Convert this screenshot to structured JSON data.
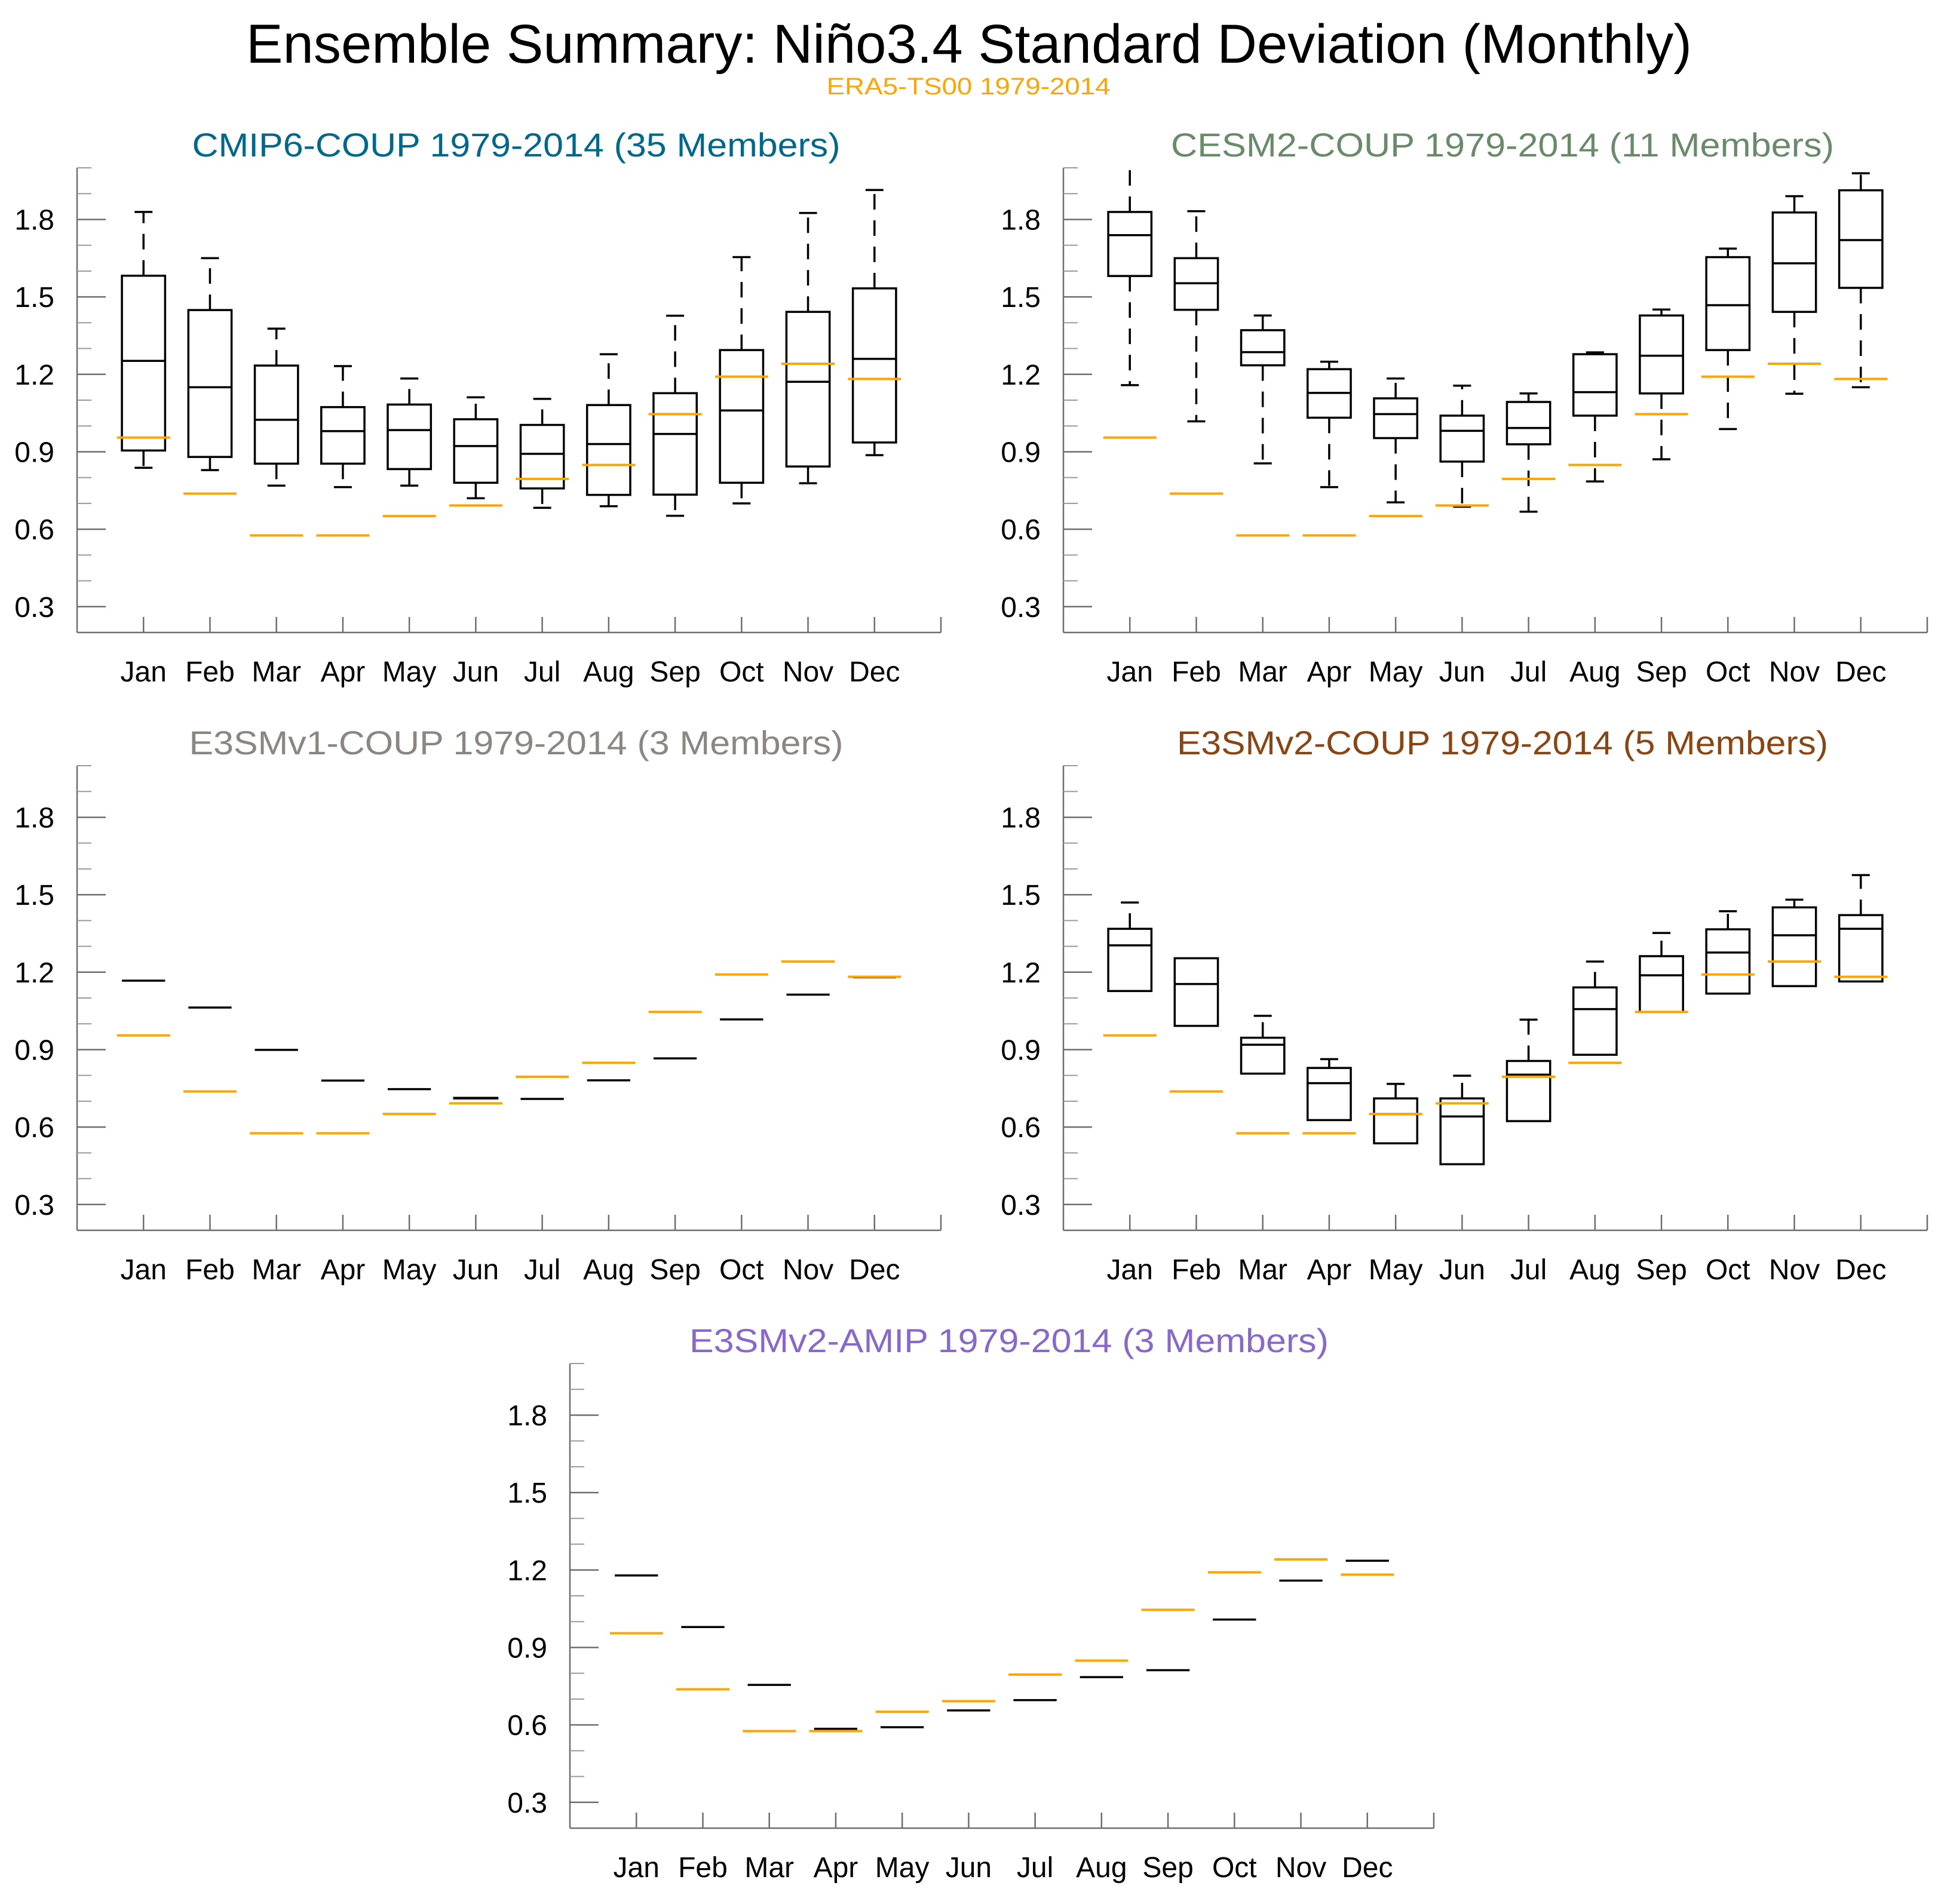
{
  "figure": {
    "title": "Ensemble Summary: Niño3.4 Standard Deviation (Monthly)",
    "subtitle": "ERA5-TS00 1979-2014",
    "subtitle_color": "#FFA500"
  },
  "chart_data": [
    {
      "type": "box",
      "title": "CMIP6-COUP 1979-2014 (35 Members)",
      "title_color": "#00688B",
      "categories": [
        "Jan",
        "Feb",
        "Mar",
        "Apr",
        "May",
        "Jun",
        "Jul",
        "Aug",
        "Sep",
        "Oct",
        "Nov",
        "Dec"
      ],
      "ylim": [
        0.2,
        2.0
      ],
      "yticks": [
        0.3,
        0.6,
        0.9,
        1.2,
        1.5,
        1.8
      ],
      "ytick_labels": [
        "0.3",
        "0.6",
        "0.9",
        "1.2",
        "1.5",
        "1.8"
      ],
      "xlabel": "",
      "ylabel": "",
      "series": [
        {
          "name": "ensemble",
          "color": "#000000",
          "whisker_low": [
            0.838,
            0.829,
            0.769,
            0.763,
            0.769,
            0.72,
            0.683,
            0.689,
            0.652,
            0.7,
            0.778,
            0.887
          ],
          "q1": [
            0.905,
            0.88,
            0.854,
            0.854,
            0.833,
            0.78,
            0.758,
            0.733,
            0.734,
            0.78,
            0.843,
            0.936
          ],
          "median": [
            1.252,
            1.15,
            1.024,
            0.98,
            0.984,
            0.922,
            0.892,
            0.93,
            0.969,
            1.06,
            1.171,
            1.26
          ],
          "q3": [
            1.582,
            1.449,
            1.234,
            1.073,
            1.083,
            1.026,
            1.004,
            1.081,
            1.127,
            1.294,
            1.442,
            1.533
          ],
          "whisker_high": [
            1.829,
            1.65,
            1.377,
            1.232,
            1.184,
            1.111,
            1.105,
            1.278,
            1.427,
            1.654,
            1.825,
            1.914
          ]
        },
        {
          "name": "ERA5-TS00 1979-2014",
          "color": "#FFA500",
          "values": [
            0.955,
            0.738,
            0.576,
            0.576,
            0.651,
            0.692,
            0.795,
            0.849,
            1.046,
            1.191,
            1.241,
            1.182
          ]
        }
      ]
    },
    {
      "type": "box",
      "title": "CESM2-COUP 1979-2014 (11 Members)",
      "title_color": "#698B69",
      "categories": [
        "Jan",
        "Feb",
        "Mar",
        "Apr",
        "May",
        "Jun",
        "Jul",
        "Aug",
        "Sep",
        "Oct",
        "Nov",
        "Dec"
      ],
      "ylim": [
        0.2,
        2.0
      ],
      "yticks": [
        0.3,
        0.6,
        0.9,
        1.2,
        1.5,
        1.8
      ],
      "ytick_labels": [
        "0.3",
        "0.6",
        "0.9",
        "1.2",
        "1.5",
        "1.8"
      ],
      "xlabel": "",
      "ylabel": "",
      "series": [
        {
          "name": "ensemble",
          "color": "#000000",
          "whisker_low": [
            1.158,
            1.018,
            0.855,
            0.763,
            0.704,
            0.687,
            0.668,
            0.785,
            0.871,
            0.988,
            1.125,
            1.15
          ],
          "q1": [
            1.581,
            1.45,
            1.235,
            1.032,
            0.953,
            0.862,
            0.929,
            1.04,
            1.126,
            1.294,
            1.442,
            1.535
          ],
          "median": [
            1.739,
            1.553,
            1.286,
            1.128,
            1.046,
            0.981,
            0.992,
            1.131,
            1.272,
            1.468,
            1.63,
            1.72
          ],
          "q3": [
            1.829,
            1.65,
            1.371,
            1.22,
            1.107,
            1.04,
            1.093,
            1.278,
            1.428,
            1.654,
            1.827,
            1.913
          ],
          "whisker_high": [
            2.05,
            1.832,
            1.428,
            1.249,
            1.184,
            1.156,
            1.126,
            1.285,
            1.451,
            1.687,
            1.89,
            1.979
          ]
        },
        {
          "name": "ERA5-TS00 1979-2014",
          "color": "#FFA500",
          "values": [
            0.955,
            0.738,
            0.576,
            0.576,
            0.651,
            0.692,
            0.795,
            0.849,
            1.046,
            1.191,
            1.241,
            1.182
          ]
        }
      ]
    },
    {
      "type": "box",
      "title": "E3SMv1-COUP 1979-2014 (3 Members)",
      "title_color": "#8B8682",
      "categories": [
        "Jan",
        "Feb",
        "Mar",
        "Apr",
        "May",
        "Jun",
        "Jul",
        "Aug",
        "Sep",
        "Oct",
        "Nov",
        "Dec"
      ],
      "ylim": [
        0.2,
        2.0
      ],
      "yticks": [
        0.3,
        0.6,
        0.9,
        1.2,
        1.5,
        1.8
      ],
      "ytick_labels": [
        "0.3",
        "0.6",
        "0.9",
        "1.2",
        "1.5",
        "1.8"
      ],
      "xlabel": "",
      "ylabel": "",
      "series": [
        {
          "name": "ensemble",
          "color": "#000000",
          "whisker_low": [
            1.167,
            1.063,
            0.899,
            0.78,
            0.747,
            0.711,
            0.709,
            0.781,
            0.866,
            1.017,
            1.113,
            1.18
          ],
          "q1": [
            1.167,
            1.063,
            0.899,
            0.78,
            0.747,
            0.711,
            0.709,
            0.781,
            0.866,
            1.017,
            1.113,
            1.18
          ],
          "median": [
            1.167,
            1.063,
            0.899,
            0.78,
            0.747,
            0.713,
            0.709,
            0.781,
            0.866,
            1.017,
            1.113,
            1.18
          ],
          "q3": [
            1.167,
            1.063,
            0.899,
            0.78,
            0.747,
            0.713,
            0.709,
            0.781,
            0.866,
            1.017,
            1.113,
            1.18
          ],
          "whisker_high": [
            1.167,
            1.063,
            0.899,
            0.78,
            0.747,
            0.713,
            0.709,
            0.781,
            0.866,
            1.017,
            1.113,
            1.18
          ]
        },
        {
          "name": "ERA5-TS00 1979-2014",
          "color": "#FFA500",
          "values": [
            0.955,
            0.738,
            0.576,
            0.576,
            0.651,
            0.692,
            0.795,
            0.849,
            1.046,
            1.191,
            1.241,
            1.182
          ]
        }
      ]
    },
    {
      "type": "box",
      "title": "E3SMv2-COUP 1979-2014 (5 Members)",
      "title_color": "#8B4513",
      "categories": [
        "Jan",
        "Feb",
        "Mar",
        "Apr",
        "May",
        "Jun",
        "Jul",
        "Aug",
        "Sep",
        "Oct",
        "Nov",
        "Dec"
      ],
      "ylim": [
        0.2,
        2.0
      ],
      "yticks": [
        0.3,
        0.6,
        0.9,
        1.2,
        1.5,
        1.8
      ],
      "ytick_labels": [
        "0.3",
        "0.6",
        "0.9",
        "1.2",
        "1.5",
        "1.8"
      ],
      "xlabel": "",
      "ylabel": "",
      "series": [
        {
          "name": "ensemble",
          "color": "#000000",
          "whisker_low": [
            1.127,
            0.992,
            0.807,
            0.627,
            0.537,
            0.456,
            0.623,
            0.88,
            1.046,
            1.117,
            1.146,
            1.164
          ],
          "q1": [
            1.127,
            0.992,
            0.807,
            0.627,
            0.537,
            0.456,
            0.623,
            0.88,
            1.046,
            1.117,
            1.146,
            1.164
          ],
          "median": [
            1.304,
            1.154,
            0.919,
            0.77,
            0.65,
            0.641,
            0.803,
            1.057,
            1.188,
            1.276,
            1.343,
            1.368
          ],
          "q3": [
            1.368,
            1.254,
            0.946,
            0.829,
            0.711,
            0.711,
            0.856,
            1.141,
            1.262,
            1.366,
            1.451,
            1.421
          ],
          "whisker_high": [
            1.47,
            1.254,
            1.031,
            0.863,
            0.767,
            0.799,
            1.016,
            1.241,
            1.352,
            1.436,
            1.481,
            1.576
          ]
        },
        {
          "name": "ERA5-TS00 1979-2014",
          "color": "#FFA500",
          "values": [
            0.955,
            0.738,
            0.576,
            0.576,
            0.651,
            0.692,
            0.795,
            0.849,
            1.046,
            1.191,
            1.241,
            1.182
          ]
        }
      ]
    },
    {
      "type": "box",
      "title": "E3SMv2-AMIP 1979-2014 (3 Members)",
      "title_color": "#8968CD",
      "categories": [
        "Jan",
        "Feb",
        "Mar",
        "Apr",
        "May",
        "Jun",
        "Jul",
        "Aug",
        "Sep",
        "Oct",
        "Nov",
        "Dec"
      ],
      "ylim": [
        0.2,
        2.0
      ],
      "yticks": [
        0.3,
        0.6,
        0.9,
        1.2,
        1.5,
        1.8
      ],
      "ytick_labels": [
        "0.3",
        "0.6",
        "0.9",
        "1.2",
        "1.5",
        "1.8"
      ],
      "xlabel": "",
      "ylabel": "",
      "series": [
        {
          "name": "ensemble",
          "color": "#000000",
          "whisker_low": [
            1.179,
            0.979,
            0.755,
            0.585,
            0.591,
            0.656,
            0.696,
            0.785,
            0.812,
            1.008,
            1.159,
            1.236
          ],
          "q1": [
            1.179,
            0.979,
            0.755,
            0.585,
            0.591,
            0.656,
            0.696,
            0.785,
            0.812,
            1.008,
            1.159,
            1.236
          ],
          "median": [
            1.179,
            0.979,
            0.755,
            0.585,
            0.591,
            0.656,
            0.696,
            0.785,
            0.812,
            1.008,
            1.159,
            1.236
          ],
          "q3": [
            1.179,
            0.979,
            0.755,
            0.585,
            0.591,
            0.656,
            0.696,
            0.785,
            0.812,
            1.008,
            1.159,
            1.236
          ],
          "whisker_high": [
            1.179,
            0.979,
            0.755,
            0.585,
            0.591,
            0.656,
            0.696,
            0.785,
            0.812,
            1.008,
            1.159,
            1.236
          ]
        },
        {
          "name": "ERA5-TS00 1979-2014",
          "color": "#FFA500",
          "values": [
            0.955,
            0.738,
            0.576,
            0.576,
            0.651,
            0.692,
            0.795,
            0.849,
            1.046,
            1.191,
            1.241,
            1.182
          ]
        }
      ]
    }
  ]
}
